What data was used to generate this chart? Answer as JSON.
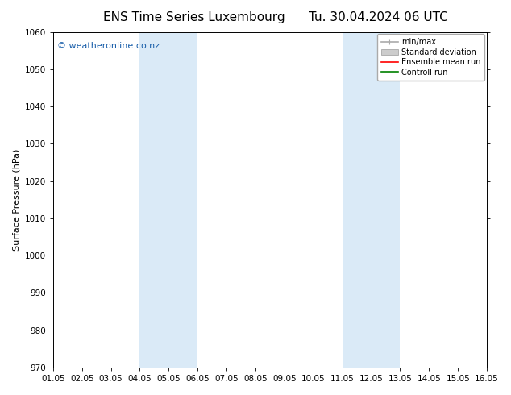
{
  "title_left": "ENS Time Series Luxembourg",
  "title_right": "Tu. 30.04.2024 06 UTC",
  "ylabel": "Surface Pressure (hPa)",
  "ylim": [
    970,
    1060
  ],
  "yticks": [
    970,
    980,
    990,
    1000,
    1010,
    1020,
    1030,
    1040,
    1050,
    1060
  ],
  "xlim_start": 0,
  "xlim_end": 15,
  "xtick_labels": [
    "01.05",
    "02.05",
    "03.05",
    "04.05",
    "05.05",
    "06.05",
    "07.05",
    "08.05",
    "09.05",
    "10.05",
    "11.05",
    "12.05",
    "13.05",
    "14.05",
    "15.05",
    "16.05"
  ],
  "shaded_bands": [
    {
      "xmin": 3,
      "xmax": 5,
      "color": "#daeaf7"
    },
    {
      "xmin": 10,
      "xmax": 12,
      "color": "#daeaf7"
    }
  ],
  "watermark": "© weatheronline.co.nz",
  "watermark_color": "#1a5faa",
  "background_color": "#ffffff",
  "plot_bg_color": "#ffffff",
  "legend_items": [
    {
      "label": "min/max",
      "color": "#aaaaaa",
      "lw": 1.2
    },
    {
      "label": "Standard deviation",
      "color": "#cccccc",
      "lw": 6
    },
    {
      "label": "Ensemble mean run",
      "color": "#ff0000",
      "lw": 1.2
    },
    {
      "label": "Controll run",
      "color": "#008000",
      "lw": 1.2
    }
  ],
  "title_fontsize": 11,
  "axis_label_fontsize": 8,
  "tick_fontsize": 7.5,
  "legend_fontsize": 7,
  "watermark_fontsize": 8
}
